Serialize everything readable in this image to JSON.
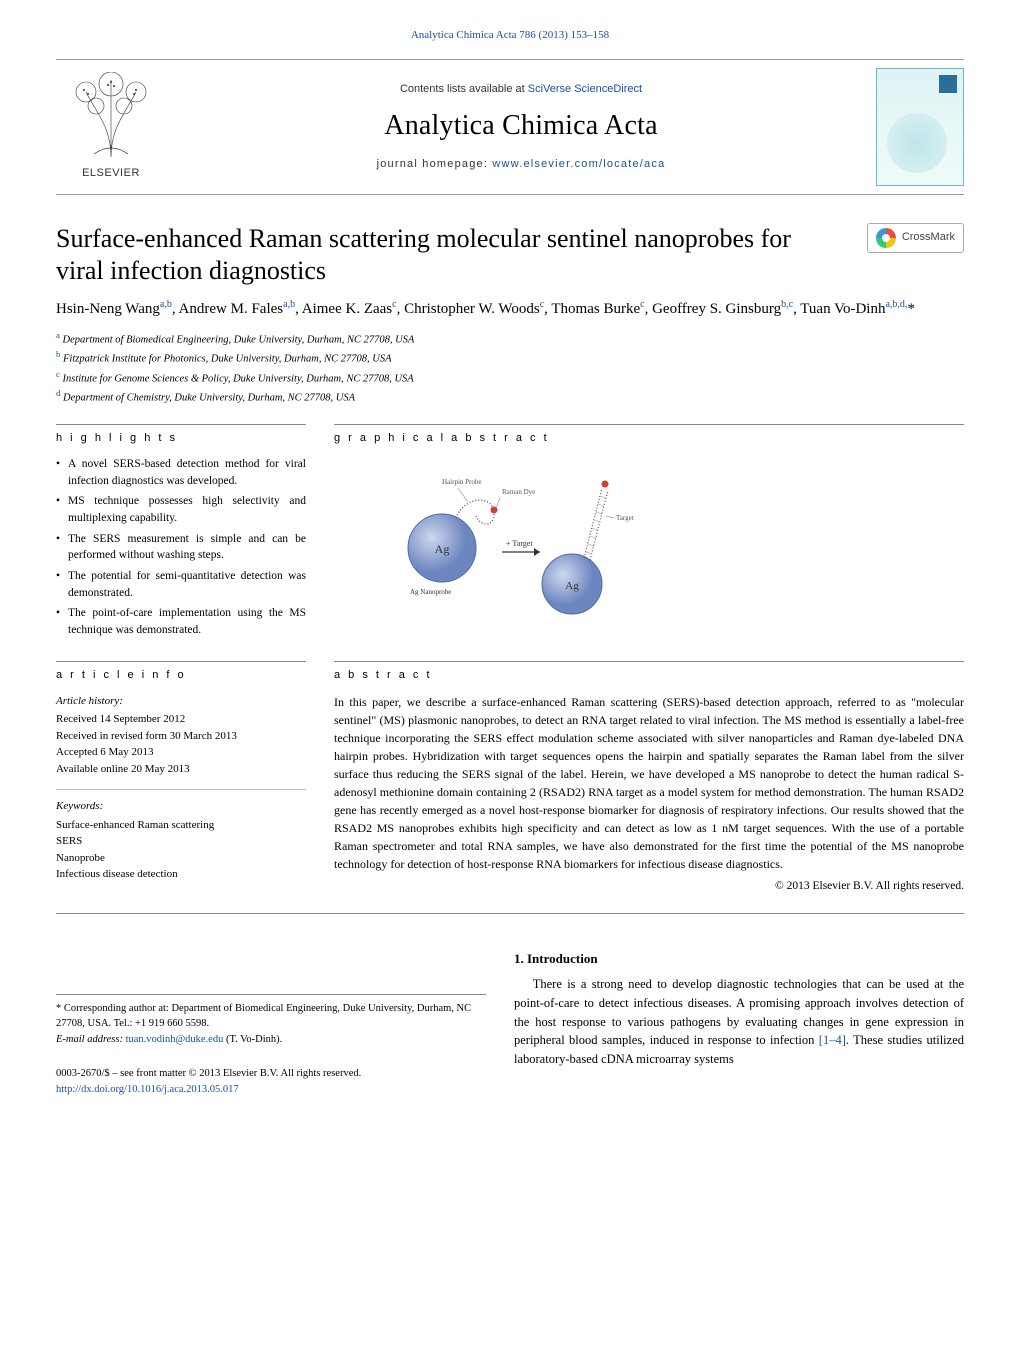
{
  "top_citation": "Analytica Chimica Acta 786 (2013) 153–158",
  "masthead": {
    "elsevier": "ELSEVIER",
    "contents_prefix": "Contents lists available at ",
    "contents_link": "SciVerse ScienceDirect",
    "journal": "Analytica Chimica Acta",
    "homepage_prefix": "journal homepage: ",
    "homepage_url": "www.elsevier.com/locate/aca"
  },
  "crossmark_label": "CrossMark",
  "title": "Surface-enhanced Raman scattering molecular sentinel nanoprobes for viral infection diagnostics",
  "authors_html": "Hsin-Neng Wang<sup>a,b</sup>, Andrew M. Fales<sup>a,b</sup>, Aimee K. Zaas<sup>c</sup>, Christopher W. Woods<sup>c</sup>, Thomas Burke<sup>c</sup>, Geoffrey S. Ginsburg<sup>b,c</sup>, Tuan Vo-Dinh<sup>a,b,d,</sup>*",
  "affiliations": [
    {
      "sup": "a",
      "text": "Department of Biomedical Engineering, Duke University, Durham, NC 27708, USA"
    },
    {
      "sup": "b",
      "text": "Fitzpatrick Institute for Photonics, Duke University, Durham, NC 27708, USA"
    },
    {
      "sup": "c",
      "text": "Institute for Genome Sciences & Policy, Duke University, Durham, NC 27708, USA"
    },
    {
      "sup": "d",
      "text": "Department of Chemistry, Duke University, Durham, NC 27708, USA"
    }
  ],
  "highlights_head": "h i g h l i g h t s",
  "highlights": [
    "A novel SERS-based detection method for viral infection diagnostics was developed.",
    "MS technique possesses high selectivity and multiplexing capability.",
    "The SERS measurement is simple and can be performed without washing steps.",
    "The potential for semi-quantitative detection was demonstrated.",
    "The point-of-care implementation using the MS technique was demonstrated."
  ],
  "graphical_head": "g r a p h i c a l   a b s t r a c t",
  "graphical_labels": {
    "ag": "Ag",
    "ms_probe": "Ag Nanoprobe",
    "raman_dye": "Raman Dye",
    "hairpin": "Hairpin Probe",
    "target": "Target",
    "plus_target": "+ Target"
  },
  "article_info_head": "a r t i c l e   i n f o",
  "article_info": {
    "history_label": "Article history:",
    "history": [
      "Received 14 September 2012",
      "Received in revised form 30 March 2013",
      "Accepted 6 May 2013",
      "Available online 20 May 2013"
    ],
    "keywords_label": "Keywords:",
    "keywords": [
      "Surface-enhanced Raman scattering",
      "SERS",
      "Nanoprobe",
      "Infectious disease detection"
    ]
  },
  "abstract_head": "a b s t r a c t",
  "abstract": "In this paper, we describe a surface-enhanced Raman scattering (SERS)-based detection approach, referred to as \"molecular sentinel\" (MS) plasmonic nanoprobes, to detect an RNA target related to viral infection. The MS method is essentially a label-free technique incorporating the SERS effect modulation scheme associated with silver nanoparticles and Raman dye-labeled DNA hairpin probes. Hybridization with target sequences opens the hairpin and spatially separates the Raman label from the silver surface thus reducing the SERS signal of the label. Herein, we have developed a MS nanoprobe to detect the human radical S-adenosyl methionine domain containing 2 (RSAD2) RNA target as a model system for method demonstration. The human RSAD2 gene has recently emerged as a novel host-response biomarker for diagnosis of respiratory infections. Our results showed that the RSAD2 MS nanoprobes exhibits high specificity and can detect as low as 1 nM target sequences. With the use of a portable Raman spectrometer and total RNA samples, we have also demonstrated for the first time the potential of the MS nanoprobe technology for detection of host-response RNA biomarkers for infectious disease diagnostics.",
  "copyright": "© 2013 Elsevier B.V. All rights reserved.",
  "intro_head": "1.  Introduction",
  "intro_para": "There is a strong need to develop diagnostic technologies that can be used at the point-of-care to detect infectious diseases. A promising approach involves detection of the host response to various pathogens by evaluating changes in gene expression in peripheral blood samples, induced in response to infection [1–4]. These studies utilized laboratory-based cDNA microarray systems",
  "intro_ref": "[1–4]",
  "corresponding": {
    "star": "*",
    "text": "Corresponding author at: Department of Biomedical Engineering, Duke University, Durham, NC 27708, USA. Tel.: +1 919 660 5598.",
    "email_label": "E-mail address: ",
    "email": "tuan.vodinh@duke.edu",
    "email_suffix": " (T. Vo-Dinh)."
  },
  "footer": {
    "issn": "0003-2670/$ – see front matter © 2013 Elsevier B.V. All rights reserved.",
    "doi": "http://dx.doi.org/10.1016/j.aca.2013.05.017"
  },
  "colors": {
    "link": "#1a4fa3",
    "rule": "#888888",
    "ag_fill": "#8fa4c9",
    "ag_stroke": "#4d6aa8"
  }
}
